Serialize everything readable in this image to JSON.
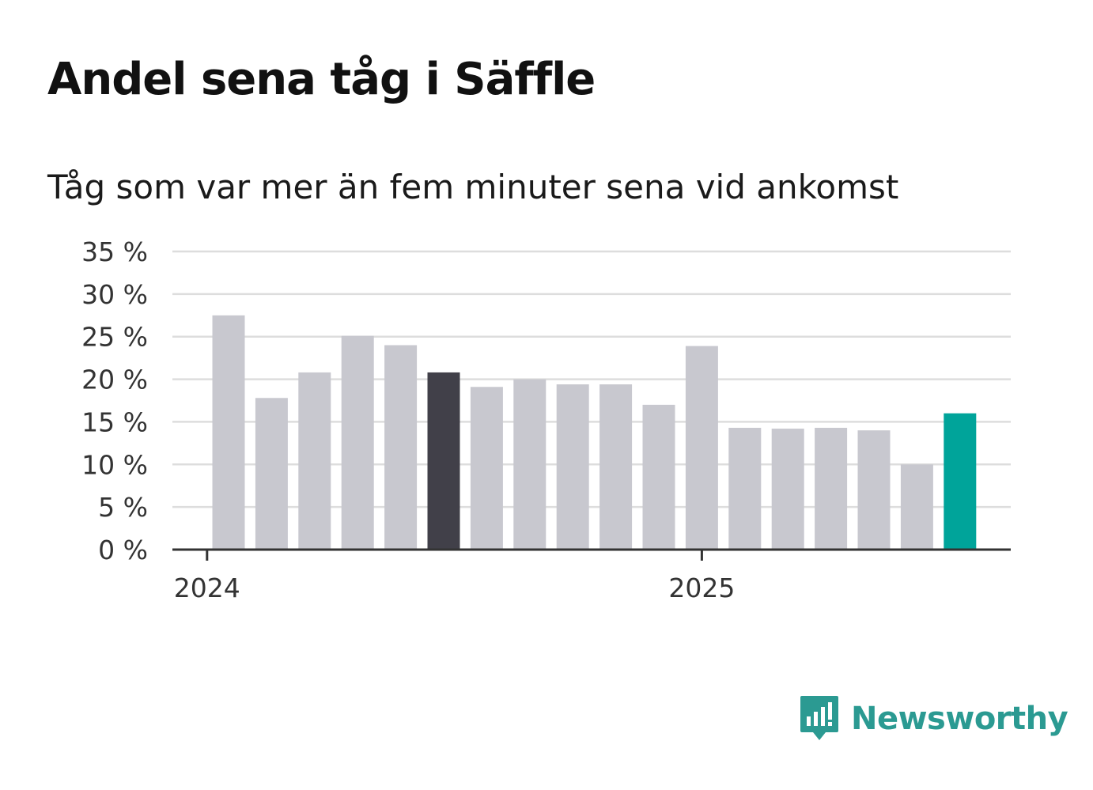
{
  "title": "Andel sena tåg i Säffle",
  "subtitle": "Tåg som var mer än fem minuter sena vid ankomst",
  "brand": {
    "name": "Newsworthy",
    "color": "#2b9a92",
    "icon": "bar-chart-speech-bubble-icon"
  },
  "colors": {
    "bar": "#c8c8cf",
    "highlight_dark": "#414049",
    "highlight_latest": "#00a49a",
    "grid": "#dddddd",
    "axis": "#333333"
  },
  "chart_data": {
    "type": "bar",
    "ylim": [
      0,
      35
    ],
    "y_ticks": [
      0,
      5,
      10,
      15,
      20,
      25,
      30,
      35
    ],
    "y_tick_labels": [
      "0 %",
      "5 %",
      "10 %",
      "15 %",
      "20 %",
      "25 %",
      "30 %",
      "35 %"
    ],
    "x_tick_labels": [
      {
        "label": "2024",
        "position_index": -0.5
      },
      {
        "label": "2025",
        "position_index": 11
      }
    ],
    "grid": true,
    "values": [
      27.5,
      17.8,
      20.8,
      25.1,
      24.0,
      20.8,
      19.1,
      20.0,
      19.4,
      19.4,
      17.0,
      23.9,
      14.3,
      14.2,
      14.3,
      14.0,
      10.0,
      16.0
    ],
    "highlights": [
      {
        "index": 5,
        "color": "#414049"
      },
      {
        "index": 17,
        "color": "#00a49a"
      }
    ]
  }
}
